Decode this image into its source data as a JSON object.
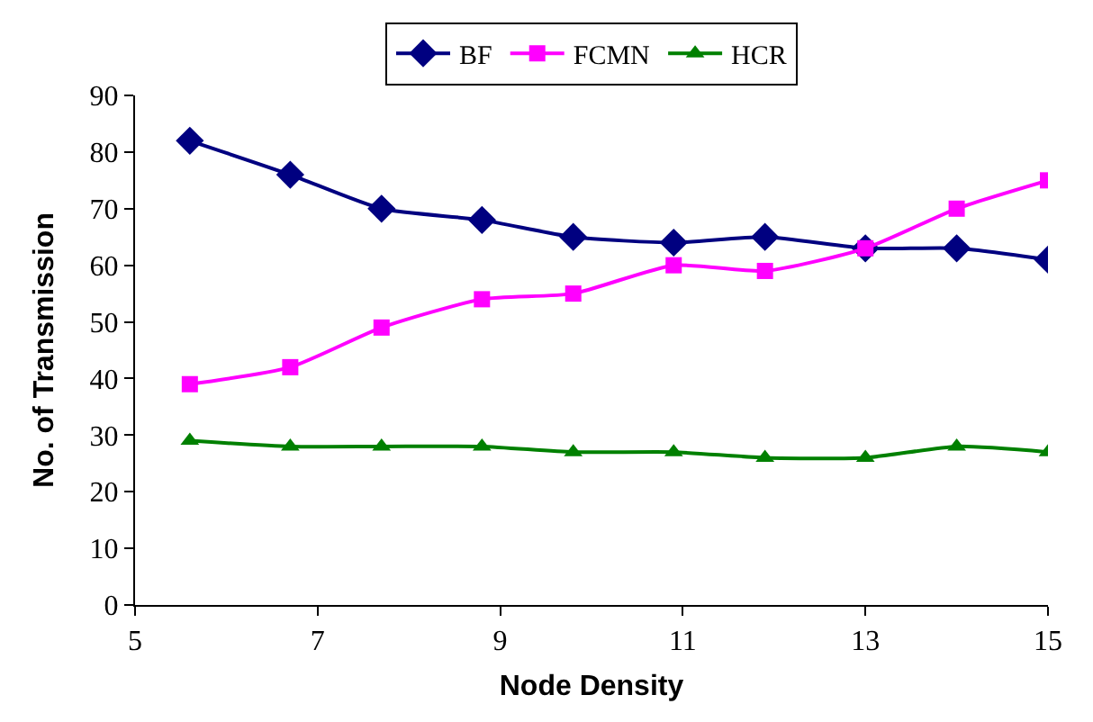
{
  "chart_data": {
    "type": "line",
    "xlabel": "Node Density",
    "ylabel": "No. of Transmission",
    "x": [
      5.6,
      6.7,
      7.7,
      8.8,
      9.8,
      10.9,
      11.9,
      13,
      14,
      15
    ],
    "xlim": [
      5,
      15
    ],
    "xticks": [
      5,
      7,
      9,
      11,
      13,
      15
    ],
    "ylim": [
      0,
      90
    ],
    "yticks": [
      0,
      10,
      20,
      30,
      40,
      50,
      60,
      70,
      80,
      90
    ],
    "grid": false,
    "legend": "top",
    "line_style": "solid",
    "series": [
      {
        "name": "BF",
        "color": "#000080",
        "marker": "diamond",
        "values": [
          82,
          76,
          70,
          68,
          65,
          64,
          65,
          63,
          63,
          61
        ]
      },
      {
        "name": "FCMN",
        "color": "#ff00ff",
        "marker": "square",
        "values": [
          39,
          42,
          49,
          54,
          55,
          60,
          59,
          63,
          70,
          75
        ]
      },
      {
        "name": "HCR",
        "color": "#008000",
        "marker": "triangle",
        "values": [
          29,
          28,
          28,
          28,
          27,
          27,
          26,
          26,
          28,
          27
        ]
      }
    ]
  }
}
